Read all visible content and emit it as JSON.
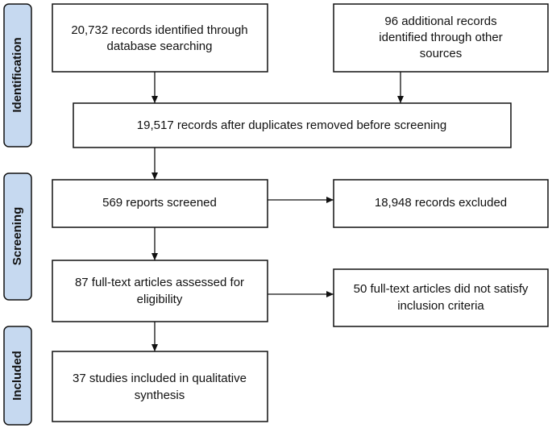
{
  "stages": [
    "Identification",
    "Screening",
    "Included"
  ],
  "nodes": [
    {
      "lines": [
        "20,732 records identified through",
        "database searching"
      ]
    },
    {
      "lines": [
        "96 additional records",
        "identified through other",
        "sources"
      ]
    },
    {
      "lines": [
        "19,517 records after duplicates removed before screening"
      ]
    },
    {
      "lines": [
        "569 reports screened"
      ]
    },
    {
      "lines": [
        "18,948 records excluded"
      ]
    },
    {
      "lines": [
        "87 full-text articles assessed for",
        "eligibility"
      ]
    },
    {
      "lines": [
        "50 full-text articles did not satisfy",
        "inclusion criteria"
      ]
    },
    {
      "lines": [
        "37 studies included in qualitative",
        "synthesis"
      ]
    }
  ]
}
